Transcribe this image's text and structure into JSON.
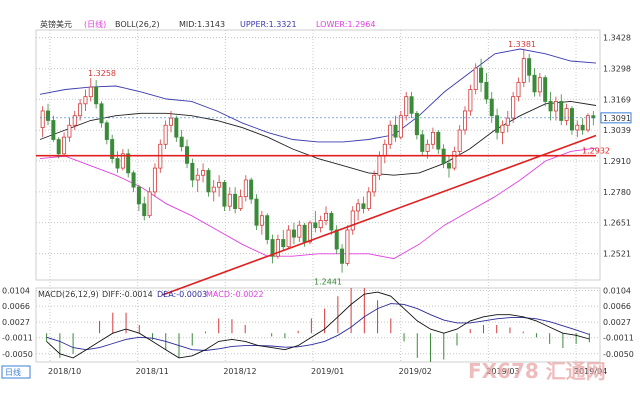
{
  "chart_data": [
    {
      "type": "candlestick",
      "instrument": "英镑美元",
      "period_tag": "(日线)",
      "indicator": {
        "name": "BOLL(26,2)",
        "mid_label": "MID:1.3143",
        "upper_label": "UPPER:1.3321",
        "lower_label": "LOWER:1.2964"
      },
      "price_axis": {
        "ticks": [
          "1.3428",
          "1.3298",
          "1.3169",
          "1.3039",
          "1.2910",
          "1.2780",
          "1.2651",
          "1.2521"
        ],
        "ylim": [
          1.241,
          1.346
        ]
      },
      "x_labels": [
        "2018/10",
        "2018/11",
        "2018/12",
        "2019/01",
        "2019/02",
        "2019/03",
        "2019/04"
      ],
      "last_price": "1.3091",
      "horizontal_level": "1.2932",
      "annotations": [
        "1.3258",
        "1.3381",
        "1.2441",
        "1.2932"
      ],
      "candles": [
        [
          1.305,
          1.314,
          1.301,
          1.312
        ],
        [
          1.312,
          1.315,
          1.306,
          1.308
        ],
        [
          1.308,
          1.31,
          1.299,
          1.3
        ],
        [
          1.3,
          1.301,
          1.292,
          1.294
        ],
        [
          1.294,
          1.303,
          1.2925,
          1.301
        ],
        [
          1.301,
          1.309,
          1.299,
          1.306
        ],
        [
          1.306,
          1.312,
          1.304,
          1.31
        ],
        [
          1.31,
          1.317,
          1.308,
          1.315
        ],
        [
          1.315,
          1.321,
          1.312,
          1.318
        ],
        [
          1.318,
          1.3258,
          1.316,
          1.322
        ],
        [
          1.322,
          1.325,
          1.313,
          1.315
        ],
        [
          1.315,
          1.316,
          1.305,
          1.307
        ],
        [
          1.307,
          1.308,
          1.298,
          1.3
        ],
        [
          1.3,
          1.302,
          1.29,
          1.292
        ],
        [
          1.292,
          1.295,
          1.286,
          1.288
        ],
        [
          1.288,
          1.296,
          1.287,
          1.294
        ],
        [
          1.294,
          1.296,
          1.284,
          1.286
        ],
        [
          1.286,
          1.287,
          1.278,
          1.28
        ],
        [
          1.28,
          1.281,
          1.27,
          1.273
        ],
        [
          1.273,
          1.276,
          1.266,
          1.268
        ],
        [
          1.268,
          1.28,
          1.267,
          1.278
        ],
        [
          1.278,
          1.29,
          1.276,
          1.288
        ],
        [
          1.288,
          1.3,
          1.286,
          1.298
        ],
        [
          1.298,
          1.308,
          1.296,
          1.306
        ],
        [
          1.306,
          1.312,
          1.303,
          1.309
        ],
        [
          1.309,
          1.31,
          1.299,
          1.301
        ],
        [
          1.301,
          1.304,
          1.295,
          1.297
        ],
        [
          1.297,
          1.3,
          1.288,
          1.29
        ],
        [
          1.29,
          1.292,
          1.28,
          1.283
        ],
        [
          1.283,
          1.288,
          1.278,
          1.285
        ],
        [
          1.285,
          1.29,
          1.282,
          1.287
        ],
        [
          1.287,
          1.288,
          1.276,
          1.278
        ],
        [
          1.278,
          1.283,
          1.274,
          1.28
        ],
        [
          1.28,
          1.285,
          1.276,
          1.282
        ],
        [
          1.282,
          1.283,
          1.27,
          1.272
        ],
        [
          1.272,
          1.28,
          1.27,
          1.277
        ],
        [
          1.277,
          1.28,
          1.269,
          1.271
        ],
        [
          1.271,
          1.279,
          1.27,
          1.276
        ],
        [
          1.276,
          1.285,
          1.274,
          1.283
        ],
        [
          1.283,
          1.284,
          1.273,
          1.275
        ],
        [
          1.275,
          1.277,
          1.262,
          1.264
        ],
        [
          1.264,
          1.27,
          1.26,
          1.268
        ],
        [
          1.268,
          1.269,
          1.256,
          1.258
        ],
        [
          1.258,
          1.26,
          1.248,
          1.251
        ],
        [
          1.251,
          1.26,
          1.25,
          1.258
        ],
        [
          1.258,
          1.262,
          1.253,
          1.255
        ],
        [
          1.255,
          1.264,
          1.254,
          1.262
        ],
        [
          1.262,
          1.265,
          1.256,
          1.259
        ],
        [
          1.259,
          1.266,
          1.257,
          1.264
        ],
        [
          1.264,
          1.265,
          1.255,
          1.257
        ],
        [
          1.257,
          1.266,
          1.256,
          1.265
        ],
        [
          1.265,
          1.27,
          1.261,
          1.263
        ],
        [
          1.263,
          1.268,
          1.261,
          1.266
        ],
        [
          1.266,
          1.272,
          1.264,
          1.269
        ],
        [
          1.269,
          1.27,
          1.26,
          1.262
        ],
        [
          1.262,
          1.264,
          1.252,
          1.254
        ],
        [
          1.254,
          1.256,
          1.2441,
          1.248
        ],
        [
          1.248,
          1.264,
          1.247,
          1.262
        ],
        [
          1.262,
          1.272,
          1.26,
          1.27
        ],
        [
          1.27,
          1.275,
          1.266,
          1.273
        ],
        [
          1.273,
          1.276,
          1.269,
          1.271
        ],
        [
          1.271,
          1.28,
          1.27,
          1.278
        ],
        [
          1.278,
          1.287,
          1.276,
          1.285
        ],
        [
          1.285,
          1.295,
          1.283,
          1.293
        ],
        [
          1.293,
          1.3,
          1.29,
          1.298
        ],
        [
          1.298,
          1.308,
          1.296,
          1.306
        ],
        [
          1.306,
          1.31,
          1.299,
          1.301
        ],
        [
          1.301,
          1.312,
          1.3,
          1.31
        ],
        [
          1.31,
          1.32,
          1.308,
          1.318
        ],
        [
          1.318,
          1.32,
          1.309,
          1.311
        ],
        [
          1.311,
          1.312,
          1.3,
          1.302
        ],
        [
          1.302,
          1.304,
          1.293,
          1.295
        ],
        [
          1.295,
          1.3,
          1.292,
          1.298
        ],
        [
          1.298,
          1.305,
          1.296,
          1.303
        ],
        [
          1.303,
          1.304,
          1.294,
          1.296
        ],
        [
          1.296,
          1.298,
          1.288,
          1.29
        ],
        [
          1.29,
          1.293,
          1.284,
          1.288
        ],
        [
          1.288,
          1.297,
          1.287,
          1.295
        ],
        [
          1.295,
          1.306,
          1.293,
          1.304
        ],
        [
          1.304,
          1.314,
          1.302,
          1.312
        ],
        [
          1.312,
          1.323,
          1.31,
          1.321
        ],
        [
          1.321,
          1.332,
          1.319,
          1.33
        ],
        [
          1.33,
          1.334,
          1.32,
          1.324
        ],
        [
          1.324,
          1.328,
          1.315,
          1.317
        ],
        [
          1.317,
          1.32,
          1.307,
          1.31
        ],
        [
          1.31,
          1.313,
          1.3,
          1.303
        ],
        [
          1.303,
          1.308,
          1.298,
          1.306
        ],
        [
          1.306,
          1.312,
          1.303,
          1.309
        ],
        [
          1.309,
          1.32,
          1.307,
          1.318
        ],
        [
          1.318,
          1.326,
          1.316,
          1.324
        ],
        [
          1.324,
          1.3381,
          1.322,
          1.334
        ],
        [
          1.334,
          1.336,
          1.324,
          1.327
        ],
        [
          1.327,
          1.33,
          1.318,
          1.32
        ],
        [
          1.32,
          1.328,
          1.318,
          1.326
        ],
        [
          1.326,
          1.327,
          1.314,
          1.316
        ],
        [
          1.316,
          1.32,
          1.308,
          1.312
        ],
        [
          1.312,
          1.318,
          1.308,
          1.316
        ],
        [
          1.316,
          1.319,
          1.306,
          1.308
        ],
        [
          1.308,
          1.315,
          1.306,
          1.313
        ],
        [
          1.313,
          1.314,
          1.302,
          1.304
        ],
        [
          1.304,
          1.308,
          1.301,
          1.306
        ],
        [
          1.306,
          1.309,
          1.302,
          1.304
        ],
        [
          1.304,
          1.311,
          1.303,
          1.31
        ],
        [
          1.31,
          1.312,
          1.306,
          1.3091
        ]
      ],
      "boll_mid": [
        1.3,
        1.304,
        1.308,
        1.31,
        1.311,
        1.311,
        1.31,
        1.308,
        1.305,
        1.301,
        1.296,
        1.292,
        1.289,
        1.286,
        1.285,
        1.286,
        1.29,
        1.296,
        1.304,
        1.31,
        1.315,
        1.316,
        1.3143
      ],
      "boll_upper": [
        1.319,
        1.321,
        1.322,
        1.3225,
        1.32,
        1.317,
        1.316,
        1.312,
        1.307,
        1.303,
        1.3,
        1.299,
        1.299,
        1.3,
        1.302,
        1.31,
        1.32,
        1.328,
        1.336,
        1.338,
        1.336,
        1.333,
        1.3321
      ],
      "boll_lower": [
        1.292,
        1.293,
        1.289,
        1.285,
        1.28,
        1.273,
        1.268,
        1.262,
        1.256,
        1.251,
        1.251,
        1.252,
        1.252,
        1.252,
        1.25,
        1.256,
        1.264,
        1.27,
        1.276,
        1.283,
        1.291,
        1.295,
        1.2964
      ],
      "trendline": {
        "from": [
          0,
          1.244
        ],
        "to": [
          104,
          1.3
        ]
      }
    },
    {
      "type": "macd",
      "indicator_label": "MACD(26,12,9)",
      "diff_label": "DIFF:-0.0014",
      "dea_label": "DEA:-0.0003",
      "macd_label": "MACD:-0.0022",
      "ticks": [
        "0.0104",
        "0.0066",
        "0.0027",
        "-0.0011",
        "-0.0050"
      ],
      "ylim": [
        -0.007,
        0.011
      ],
      "diff": [
        -0.002,
        -0.005,
        -0.006,
        -0.004,
        -0.002,
        0.0,
        0.001,
        0.0,
        -0.002,
        -0.004,
        -0.006,
        -0.0055,
        -0.004,
        -0.002,
        -0.0015,
        -0.002,
        -0.003,
        -0.0035,
        -0.004,
        -0.003,
        -0.001,
        0.001,
        0.004,
        0.007,
        0.0095,
        0.01,
        0.009,
        0.006,
        0.003,
        0.001,
        0.0,
        0.001,
        0.003,
        0.004,
        0.0045,
        0.0045,
        0.004,
        0.003,
        0.0015,
        0.0,
        -0.0005,
        -0.0014
      ],
      "dea": [
        -0.001,
        -0.002,
        -0.0035,
        -0.004,
        -0.0035,
        -0.0025,
        -0.0015,
        -0.001,
        -0.0012,
        -0.002,
        -0.003,
        -0.004,
        -0.0042,
        -0.0038,
        -0.0032,
        -0.003,
        -0.003,
        -0.0031,
        -0.0034,
        -0.0033,
        -0.0028,
        -0.002,
        -0.0005,
        0.0015,
        0.004,
        0.006,
        0.0072,
        0.007,
        0.006,
        0.0045,
        0.0032,
        0.0025,
        0.0025,
        0.003,
        0.0035,
        0.0038,
        0.0038,
        0.0035,
        0.0028,
        0.0018,
        0.0008,
        -0.0003
      ],
      "hist": [
        -0.002,
        -0.006,
        -0.005,
        0.0,
        0.003,
        0.005,
        0.005,
        0.002,
        -0.0016,
        -0.004,
        -0.006,
        -0.003,
        0.0004,
        0.0036,
        0.0034,
        0.002,
        0.0,
        -0.0008,
        -0.0012,
        0.0006,
        0.0036,
        0.006,
        0.009,
        0.011,
        0.011,
        0.008,
        0.0036,
        -0.002,
        -0.006,
        -0.007,
        -0.0064,
        -0.003,
        0.001,
        0.002,
        0.002,
        0.0014,
        0.0004,
        -0.001,
        -0.0026,
        -0.0036,
        -0.0026,
        -0.0022
      ]
    }
  ],
  "ui": {
    "bottom_tag": "日线",
    "watermark": "FX678 汇通网"
  },
  "colors": {
    "up": "#d63a3a",
    "down": "#3a8a3a",
    "boll_mid": "#222222",
    "boll_upper": "#3b3bb0",
    "boll_lower": "#e040e0",
    "support": "#e02020",
    "axis_text": "#333333",
    "grid": "#c8c8c8",
    "last_price_box": "#3a7fd8",
    "level_text": "#e02020",
    "macd_dea": "#2a2a9a",
    "macd_diff": "#111111",
    "watermark": "#e8a6a6"
  }
}
